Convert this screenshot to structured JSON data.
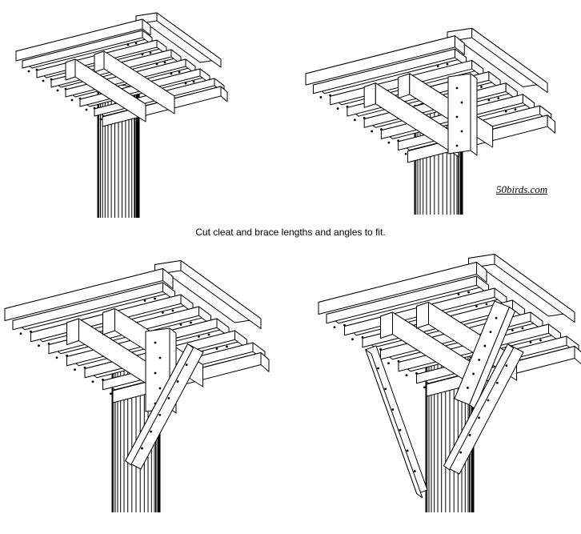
{
  "caption": "Cut cleat and brace lengths and angles to fit.",
  "credit": "50birds.com",
  "colors": {
    "line": "#000000",
    "wood": "#ffffff",
    "background": "#ffffff"
  },
  "panels": [
    {
      "id": "step-1",
      "parts": [
        "post",
        "platform",
        "cross-cleats"
      ]
    },
    {
      "id": "step-2",
      "parts": [
        "post",
        "platform",
        "cross-cleats",
        "front-cleat"
      ]
    },
    {
      "id": "step-3",
      "parts": [
        "post",
        "platform",
        "cross-cleats",
        "front-cleat",
        "front-brace"
      ]
    },
    {
      "id": "step-4",
      "parts": [
        "post",
        "platform",
        "cross-cleats",
        "front-cleat",
        "front-brace",
        "side-braces"
      ]
    }
  ]
}
